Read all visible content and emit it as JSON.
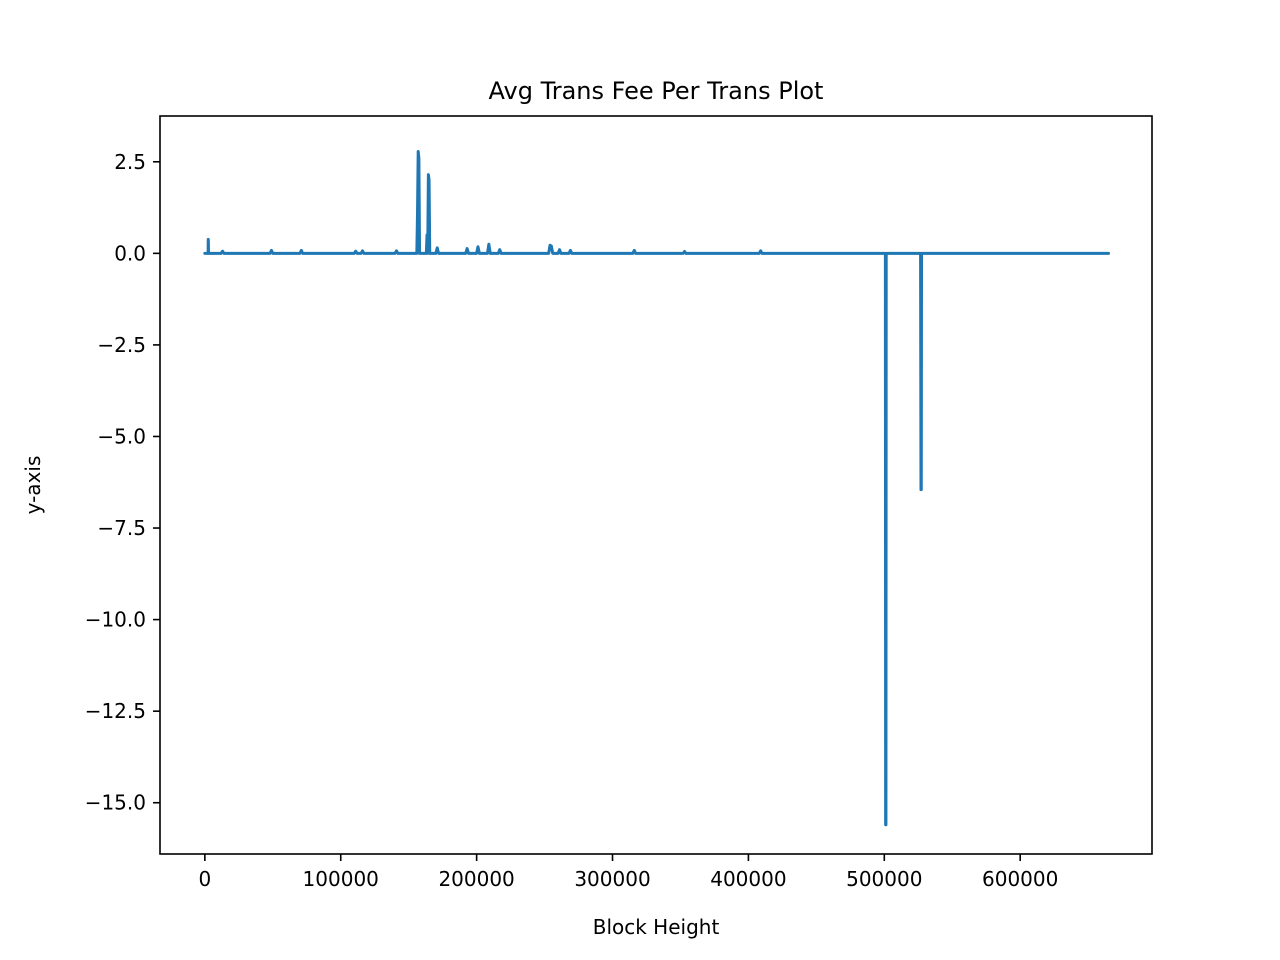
{
  "chart_data": {
    "type": "line",
    "title": "Avg Trans Fee Per Trans Plot",
    "xlabel": "Block Height",
    "ylabel": "y-axis",
    "xlim": [
      -33000,
      697000
    ],
    "ylim": [
      -16.4,
      3.75
    ],
    "x_ticks": [
      0,
      100000,
      200000,
      300000,
      400000,
      500000,
      600000
    ],
    "x_tick_labels": [
      "0",
      "100000",
      "200000",
      "300000",
      "400000",
      "500000",
      "600000"
    ],
    "y_ticks": [
      2.5,
      0.0,
      -2.5,
      -5.0,
      -7.5,
      -10.0,
      -12.5,
      -15.0
    ],
    "y_tick_labels": [
      "2.5",
      "0.0",
      "−2.5",
      "−5.0",
      "−7.5",
      "−10.0",
      "−12.5",
      "−15.0"
    ],
    "grid": false,
    "line_color": "#1f77b4",
    "series": [
      {
        "x": [
          0,
          2400,
          2500,
          2600,
          2700,
          12000,
          13000,
          14000,
          48000,
          49000,
          50000,
          70000,
          71000,
          72000,
          110000,
          111000,
          112000,
          115000,
          116000,
          117000,
          140000,
          141000,
          142000,
          156000,
          156500,
          157000,
          157500,
          158000,
          158500,
          163000,
          163500,
          164000,
          164500,
          165000,
          165500,
          170000,
          171000,
          172000,
          192000,
          193000,
          194000,
          200000,
          201000,
          202000,
          208000,
          209000,
          210000,
          216000,
          217000,
          218000,
          253000,
          254000,
          255000,
          256000,
          260000,
          261000,
          262000,
          268000,
          269000,
          270000,
          315000,
          316000,
          317000,
          352000,
          353000,
          354000,
          408000,
          409000,
          410000,
          500800,
          501000,
          501200,
          501400,
          526700,
          527000,
          527200,
          527400,
          600000,
          640000,
          665000
        ],
        "y": [
          0.0,
          0.0,
          0.38,
          0.3,
          0.0,
          0.0,
          0.06,
          0.0,
          0.0,
          0.08,
          0.0,
          0.0,
          0.08,
          0.0,
          0.0,
          0.06,
          0.0,
          0.0,
          0.07,
          0.0,
          0.0,
          0.07,
          0.0,
          0.0,
          1.1,
          2.78,
          2.6,
          0.0,
          0.0,
          0.0,
          0.5,
          0.0,
          2.15,
          2.0,
          0.0,
          0.0,
          0.15,
          0.0,
          0.0,
          0.13,
          0.0,
          0.0,
          0.18,
          0.0,
          0.0,
          0.25,
          0.0,
          0.0,
          0.1,
          0.0,
          0.0,
          0.22,
          0.2,
          0.0,
          0.0,
          0.1,
          0.0,
          0.0,
          0.08,
          0.0,
          0.0,
          0.08,
          0.0,
          0.0,
          0.05,
          0.0,
          0.0,
          0.07,
          0.0,
          0.0,
          -15.6,
          -15.6,
          0.0,
          0.0,
          -6.45,
          -6.45,
          0.0,
          0.0,
          0.0,
          0.0
        ]
      }
    ]
  }
}
